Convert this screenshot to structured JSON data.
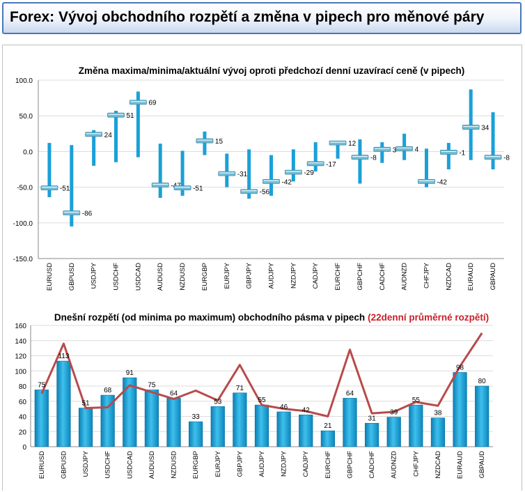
{
  "header": {
    "title": "Forex: Vývoj obchodního rozpětí a změna v pipech pro měnové páry"
  },
  "colors": {
    "bar": "#1aa0d8",
    "marker": "#6fbcd6",
    "line": "#b94a4a",
    "accent_red": "#c8202a"
  },
  "chart_data": [
    {
      "type": "range",
      "title": "Změna maxima/minima/aktuální vývoj oproti předchozí denní uzavírací ceně (v pipech)",
      "ylim": [
        -150,
        100
      ],
      "yticks": [
        "100.0",
        "50.0",
        "0.0",
        "-50.0",
        "-100.0",
        "-150.0"
      ],
      "categories": [
        "EURUSD",
        "GBPUSD",
        "USDJPY",
        "USDCHF",
        "USDCAD",
        "AUDUSD",
        "NZDUSD",
        "EURGBP",
        "EURJPY",
        "GBPJPY",
        "AUDJPY",
        "NZDJPY",
        "CADJPY",
        "EURCHF",
        "GBPCHF",
        "CADCHF",
        "AUDNZD",
        "CHFJPY",
        "NZDCAD",
        "EURAUD",
        "GBPAUD"
      ],
      "high": [
        12,
        9,
        30,
        57,
        84,
        11,
        1,
        28,
        -3,
        3,
        -5,
        3,
        13,
        14,
        17,
        13,
        25,
        4,
        12,
        87,
        55
      ],
      "low": [
        -64,
        -105,
        -20,
        -15,
        -8,
        -65,
        -62,
        -5,
        -50,
        -66,
        -62,
        -42,
        -28,
        -10,
        -45,
        -16,
        -12,
        -50,
        -25,
        -12,
        -25
      ],
      "current": [
        -51,
        -86,
        24,
        51,
        69,
        -47,
        -51,
        15,
        -31,
        -56,
        -42,
        -29,
        -17,
        12,
        -8,
        3,
        4,
        -42,
        -1,
        34,
        -8
      ],
      "labels": [
        "-51",
        "-86",
        "24",
        "51",
        "69",
        "-47",
        "-51",
        "15",
        "-31",
        "-56",
        "-42",
        "-29",
        "-17",
        "12",
        "-8",
        "3",
        "4",
        "-42",
        "-1",
        "34",
        "-8"
      ]
    },
    {
      "type": "bar",
      "title": "Dnešní rozpětí (od minima po maximum) obchodního pásma v pipech",
      "title_extra": "(22denní průměrné rozpětí)",
      "ylim": [
        0,
        160
      ],
      "yticks": [
        "160",
        "140",
        "120",
        "100",
        "80",
        "60",
        "40",
        "20",
        "0"
      ],
      "categories": [
        "EURUSD",
        "GBPUSD",
        "USDJPY",
        "USDCHF",
        "USDCAD",
        "AUDUSD",
        "NZDUSD",
        "EURGBP",
        "EURJPY",
        "GBPJPY",
        "AUDJPY",
        "NZDJPY",
        "CADJPY",
        "EURCHF",
        "GBPCHF",
        "CADCHF",
        "AUDNZD",
        "CHFJPY",
        "NZDCAD",
        "EURAUD",
        "GBPAUD"
      ],
      "values": [
        75,
        113,
        51,
        68,
        91,
        75,
        64,
        33,
        53,
        71,
        55,
        46,
        42,
        21,
        64,
        31,
        39,
        55,
        38,
        98,
        80
      ],
      "labels": [
        "75",
        "113",
        "51",
        "68",
        "91",
        "75",
        "64",
        "33",
        "53",
        "71",
        "55",
        "46",
        "42",
        "21",
        "64",
        "31",
        "39",
        "55",
        "38",
        "98",
        "80"
      ],
      "average": [
        70,
        136,
        51,
        52,
        81,
        72,
        63,
        74,
        61,
        108,
        55,
        50,
        47,
        40,
        128,
        44,
        46,
        59,
        54,
        106,
        150
      ]
    }
  ]
}
